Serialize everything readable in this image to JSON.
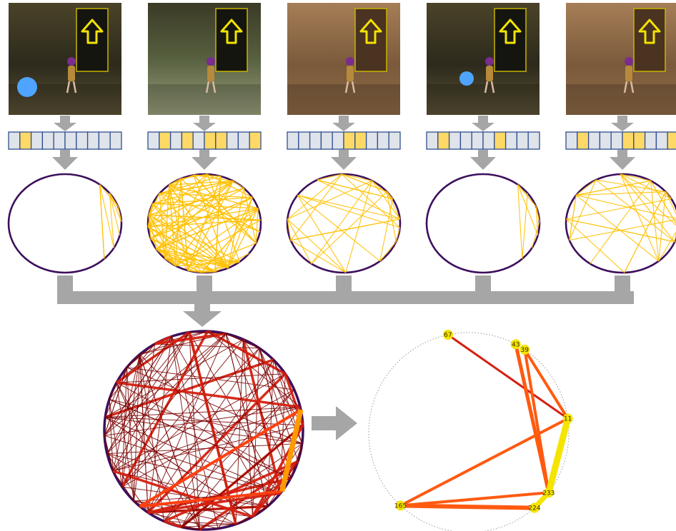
{
  "colors": {
    "flow_arrow": "#a6a6a6",
    "cell_fill": "#dfe3ea",
    "cell_active": "#ffd966",
    "cell_border": "#2f4f8f",
    "circle_outline": "#3d0f5c",
    "edge_yellow": "#ffc000",
    "edge_dark": "#7a0000",
    "edge_red": "#d42010",
    "edge_orange": "#ff5a10",
    "node_yellow": "#f5e400"
  },
  "columns": [
    {
      "scene": "stone-corridor",
      "has_blue_ball": true,
      "vector": [
        0,
        1,
        0,
        0,
        0,
        0,
        0,
        0,
        0,
        0
      ],
      "graph": "arc-right"
    },
    {
      "scene": "lit-hall",
      "has_blue_ball": false,
      "vector": [
        0,
        1,
        0,
        1,
        0,
        1,
        1,
        0,
        0,
        1
      ],
      "graph": "dense"
    },
    {
      "scene": "brown-wall",
      "has_blue_ball": false,
      "vector": [
        0,
        0,
        0,
        0,
        0,
        1,
        1,
        0,
        0,
        0
      ],
      "graph": "medium"
    },
    {
      "scene": "stone-corridor",
      "has_blue_ball": true,
      "vector": [
        0,
        1,
        0,
        0,
        0,
        0,
        1,
        0,
        0,
        0
      ],
      "graph": "arc-right"
    },
    {
      "scene": "brown-wall",
      "has_blue_ball": false,
      "vector": [
        0,
        1,
        0,
        0,
        0,
        1,
        1,
        0,
        0,
        1
      ],
      "graph": "medium"
    }
  ],
  "selected_nodes": [
    {
      "label": "67",
      "angle": 102
    },
    {
      "label": "43",
      "angle": 62
    },
    {
      "label": "39",
      "angle": 56
    },
    {
      "label": "11",
      "angle": 8
    },
    {
      "label": "233",
      "angle": -37
    },
    {
      "label": "224",
      "angle": -49
    },
    {
      "label": "165",
      "angle": -133
    }
  ],
  "selected_edges": [
    {
      "from": "67",
      "to": "11",
      "color": "edge_red",
      "width": 3
    },
    {
      "from": "43",
      "to": "233",
      "color": "edge_orange",
      "width": 5
    },
    {
      "from": "39",
      "to": "11",
      "color": "edge_orange",
      "width": 4
    },
    {
      "from": "39",
      "to": "233",
      "color": "edge_orange",
      "width": 4
    },
    {
      "from": "11",
      "to": "165",
      "color": "edge_orange",
      "width": 4
    },
    {
      "from": "11",
      "to": "233",
      "color": "node_yellow",
      "width": 9
    },
    {
      "from": "165",
      "to": "224",
      "color": "edge_orange",
      "width": 6
    },
    {
      "from": "165",
      "to": "233",
      "color": "edge_orange",
      "width": 4
    },
    {
      "from": "224",
      "to": "233",
      "color": "node_yellow",
      "width": 7
    }
  ]
}
